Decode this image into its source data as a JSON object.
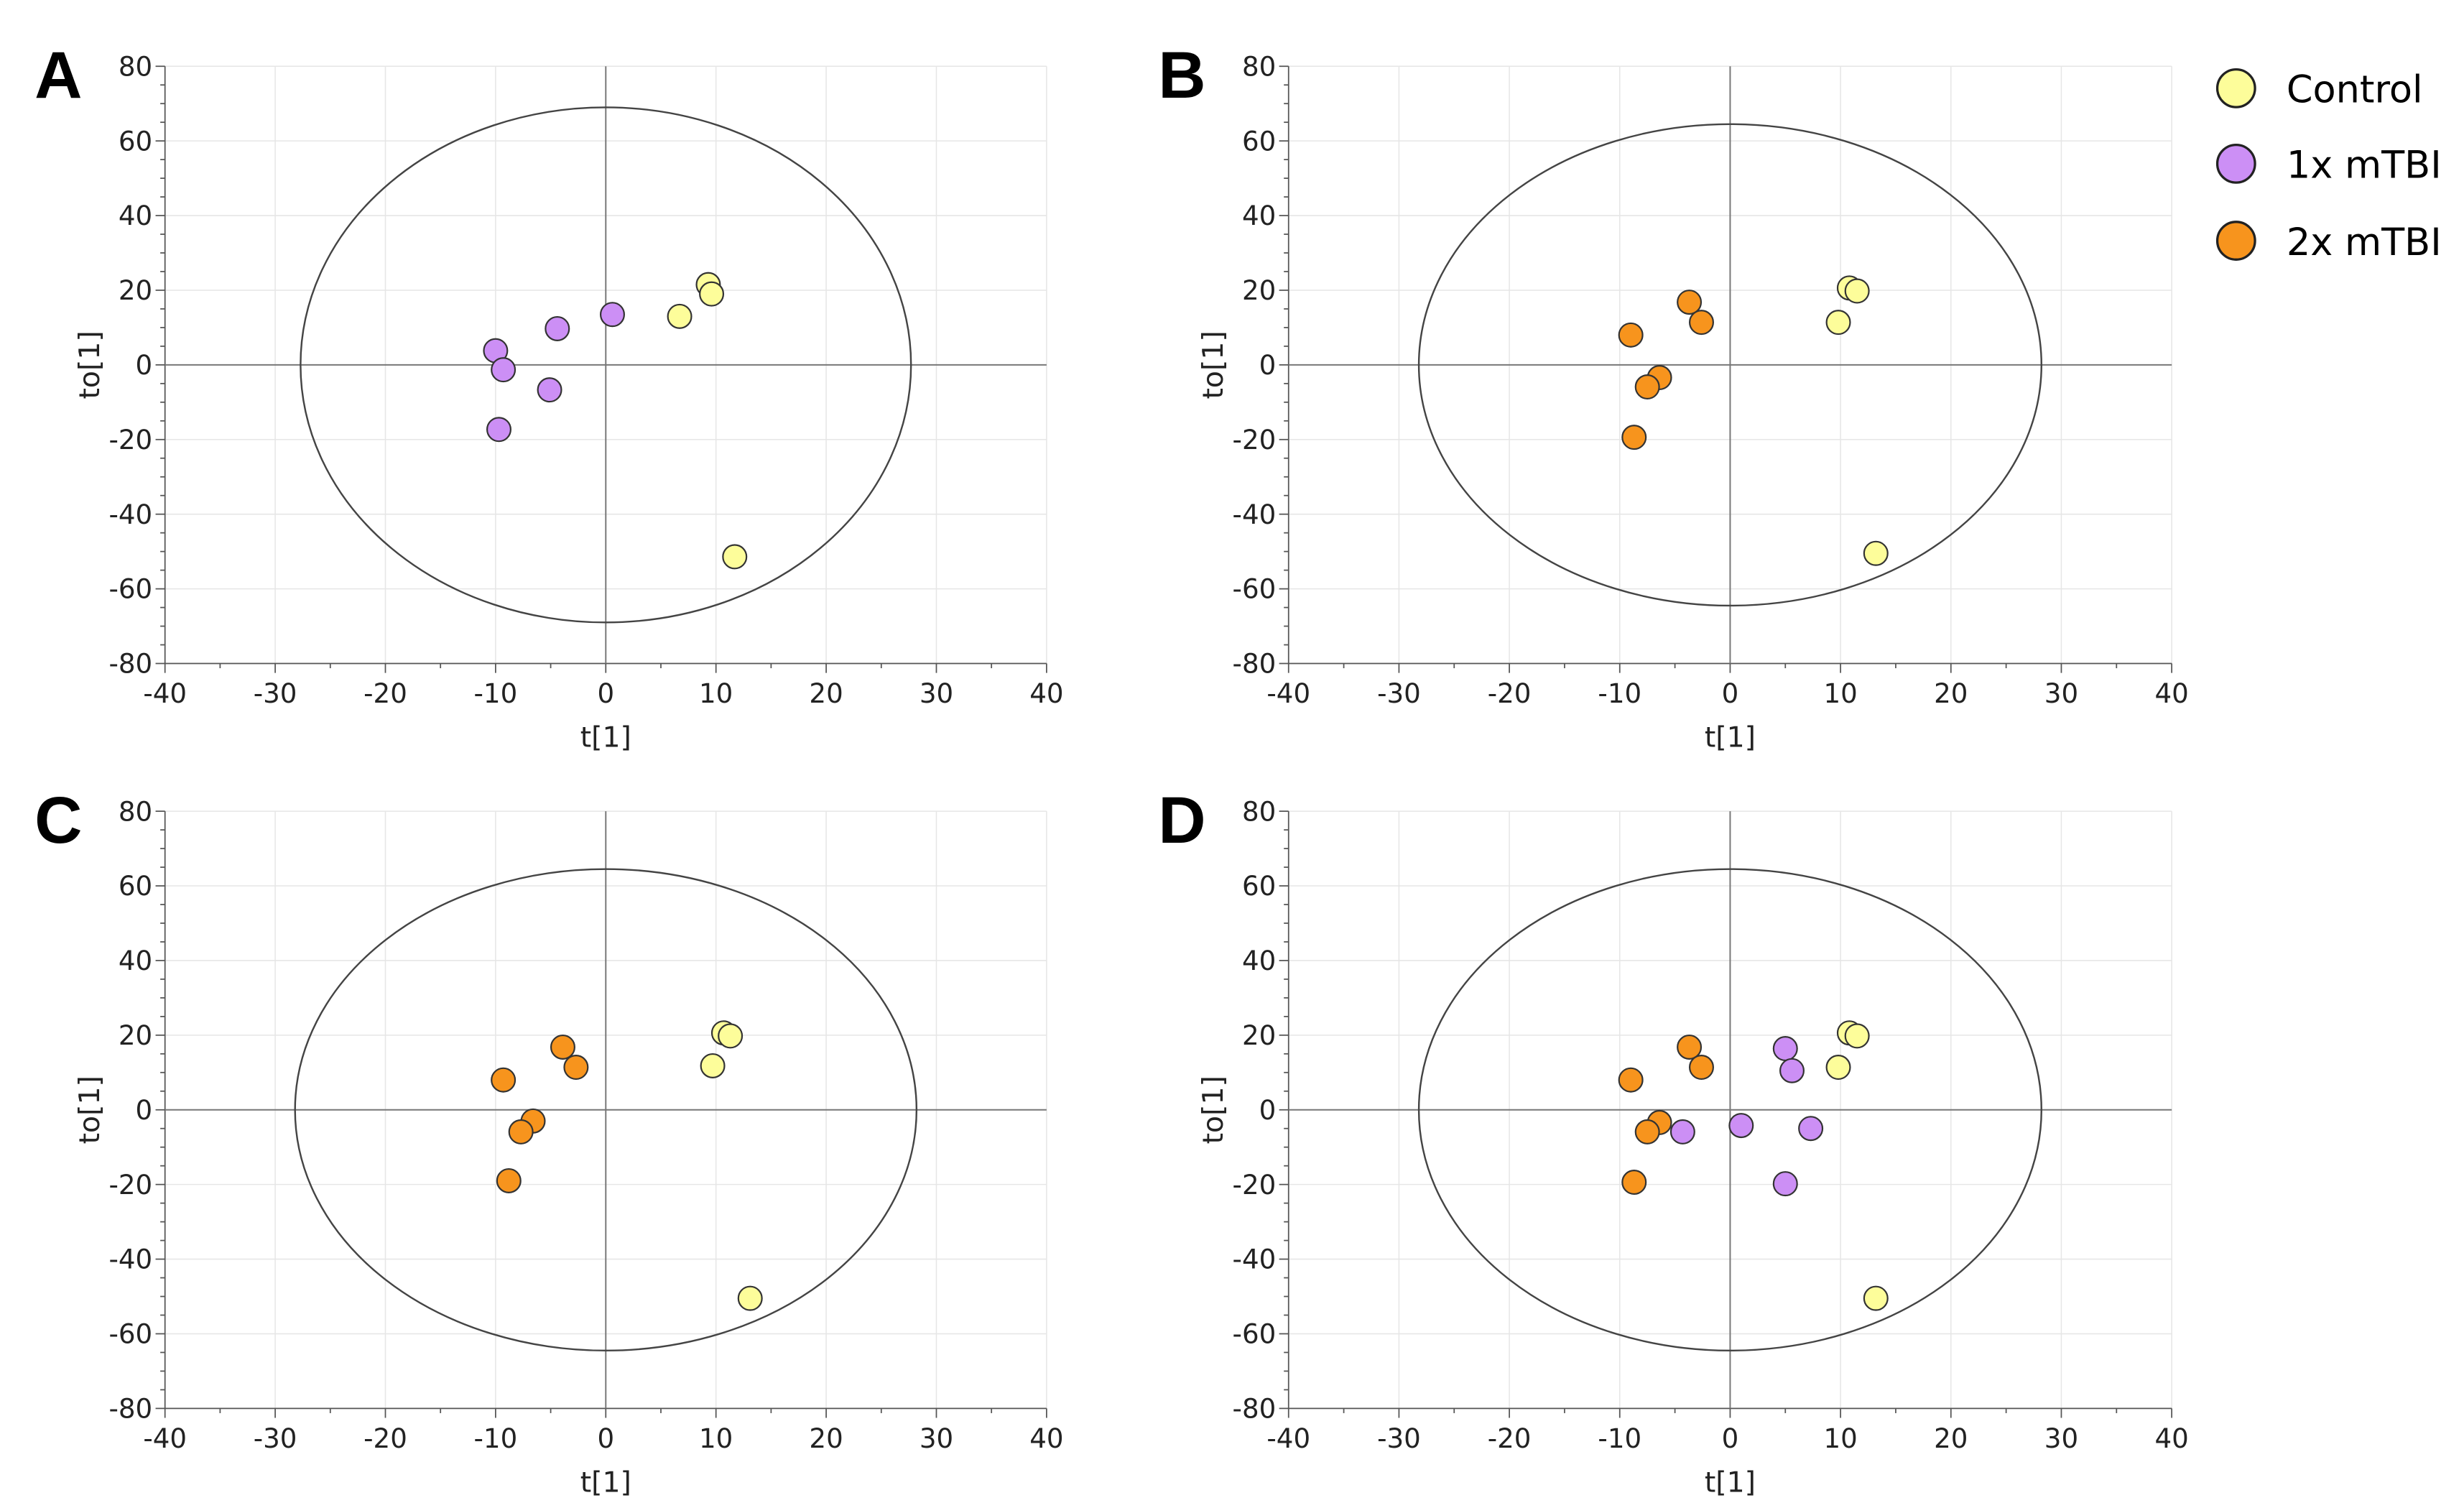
{
  "legend": [
    {
      "label": "Control",
      "color": "#fdfd9a"
    },
    {
      "label": "1x mTBI",
      "color": "#cc8ff5"
    },
    {
      "label": "2x mTBI",
      "color": "#f7941d"
    }
  ],
  "chart_data": [
    {
      "panel": "A",
      "type": "scatter",
      "xlabel": "t[1]",
      "ylabel": "to[1]",
      "xlim": [
        -40,
        40
      ],
      "ylim": [
        -80,
        80
      ],
      "xticks": [
        -40,
        -30,
        -20,
        -10,
        0,
        10,
        20,
        30,
        40
      ],
      "yticks": [
        -80,
        -60,
        -40,
        -20,
        0,
        20,
        40,
        60,
        80
      ],
      "ellipse": {
        "rx": 27.7,
        "ry": 69
      },
      "series": [
        {
          "name": "1x mTBI",
          "points": [
            [
              -10,
              3.8
            ],
            [
              -9.3,
              -1.3
            ],
            [
              -4.4,
              9.7
            ],
            [
              -5.1,
              -6.7
            ],
            [
              -9.7,
              -17.3
            ],
            [
              0.6,
              13.5
            ]
          ]
        },
        {
          "name": "Control",
          "points": [
            [
              9.3,
              21.5
            ],
            [
              9.6,
              19
            ],
            [
              6.7,
              13
            ],
            [
              11.7,
              -51.4
            ]
          ]
        }
      ]
    },
    {
      "panel": "B",
      "type": "scatter",
      "xlabel": "t[1]",
      "ylabel": "to[1]",
      "xlim": [
        -40,
        40
      ],
      "ylim": [
        -80,
        80
      ],
      "xticks": [
        -40,
        -30,
        -20,
        -10,
        0,
        10,
        20,
        30,
        40
      ],
      "yticks": [
        -80,
        -60,
        -40,
        -20,
        0,
        20,
        40,
        60,
        80
      ],
      "ellipse": {
        "rx": 28.2,
        "ry": 64.5
      },
      "series": [
        {
          "name": "2x mTBI",
          "points": [
            [
              -9,
              8
            ],
            [
              -3.7,
              16.8
            ],
            [
              -2.6,
              11.4
            ],
            [
              -6.4,
              -3.4
            ],
            [
              -7.5,
              -5.9
            ],
            [
              -8.7,
              -19.4
            ]
          ]
        },
        {
          "name": "Control",
          "points": [
            [
              10.8,
              20.6
            ],
            [
              11.5,
              19.8
            ],
            [
              9.8,
              11.4
            ],
            [
              13.2,
              -50.5
            ]
          ]
        }
      ]
    },
    {
      "panel": "C",
      "type": "scatter",
      "xlabel": "t[1]",
      "ylabel": "to[1]",
      "xlim": [
        -40,
        40
      ],
      "ylim": [
        -80,
        80
      ],
      "xticks": [
        -40,
        -30,
        -20,
        -10,
        0,
        10,
        20,
        30,
        40
      ],
      "yticks": [
        -80,
        -60,
        -40,
        -20,
        0,
        20,
        40,
        60,
        80
      ],
      "ellipse": {
        "rx": 28.2,
        "ry": 64.5
      },
      "series": [
        {
          "name": "2x mTBI",
          "points": [
            [
              -9.3,
              8
            ],
            [
              -3.9,
              16.8
            ],
            [
              -2.7,
              11.4
            ],
            [
              -6.6,
              -3
            ],
            [
              -7.7,
              -5.9
            ],
            [
              -8.8,
              -19
            ]
          ]
        },
        {
          "name": "Control",
          "points": [
            [
              10.7,
              20.6
            ],
            [
              11.3,
              19.8
            ],
            [
              9.7,
              11.8
            ],
            [
              13.1,
              -50.5
            ]
          ]
        }
      ]
    },
    {
      "panel": "D",
      "type": "scatter",
      "xlabel": "t[1]",
      "ylabel": "to[1]",
      "xlim": [
        -40,
        40
      ],
      "ylim": [
        -80,
        80
      ],
      "xticks": [
        -40,
        -30,
        -20,
        -10,
        0,
        10,
        20,
        30,
        40
      ],
      "yticks": [
        -80,
        -60,
        -40,
        -20,
        0,
        20,
        40,
        60,
        80
      ],
      "ellipse": {
        "rx": 28.2,
        "ry": 64.5
      },
      "series": [
        {
          "name": "2x mTBI",
          "points": [
            [
              -9,
              8
            ],
            [
              -3.7,
              16.8
            ],
            [
              -2.6,
              11.4
            ],
            [
              -6.4,
              -3.4
            ],
            [
              -7.5,
              -5.9
            ],
            [
              -8.7,
              -19.4
            ]
          ]
        },
        {
          "name": "1x mTBI",
          "points": [
            [
              5,
              16.4
            ],
            [
              5.6,
              10.5
            ],
            [
              -4.3,
              -5.9
            ],
            [
              1,
              -4.2
            ],
            [
              7.3,
              -5
            ],
            [
              5,
              -19.8
            ]
          ]
        },
        {
          "name": "Control",
          "points": [
            [
              10.8,
              20.6
            ],
            [
              11.5,
              19.8
            ],
            [
              9.8,
              11.4
            ],
            [
              13.2,
              -50.5
            ]
          ]
        }
      ]
    }
  ]
}
